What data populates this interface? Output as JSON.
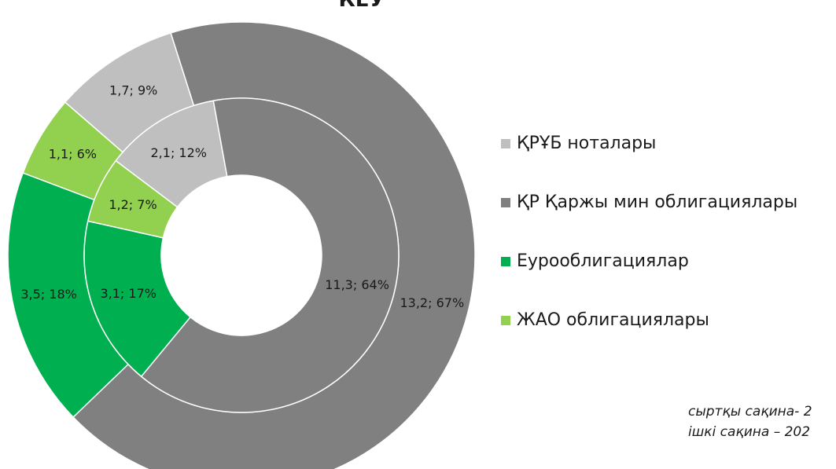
{
  "chart_data": {
    "type": "donut",
    "title": "КЕУ",
    "categories": [
      "ҚРҰБ ноталары",
      "ҚР Қаржы мин облигациялары",
      "Еурооблигациялар",
      "ЖАО облигациялары"
    ],
    "colors": [
      "#bfbfbf",
      "#808080",
      "#00b050",
      "#92d050"
    ],
    "rings": [
      {
        "values": [
          1.7,
          13.2,
          3.5,
          1.1
        ],
        "value_labels": [
          "1,7; 9%",
          "13,2; 67%",
          "3,5; 18%",
          "1,1; 6%"
        ]
      },
      {
        "values": [
          2.1,
          11.3,
          3.1,
          1.2
        ],
        "value_labels": [
          "2,1; 12%",
          "11,3; 64%",
          "3,1; 17%",
          "1,2; 7%"
        ]
      }
    ],
    "annotations": [
      "сыртқы сақина- 2",
      "ішкі сақина – 202"
    ]
  }
}
